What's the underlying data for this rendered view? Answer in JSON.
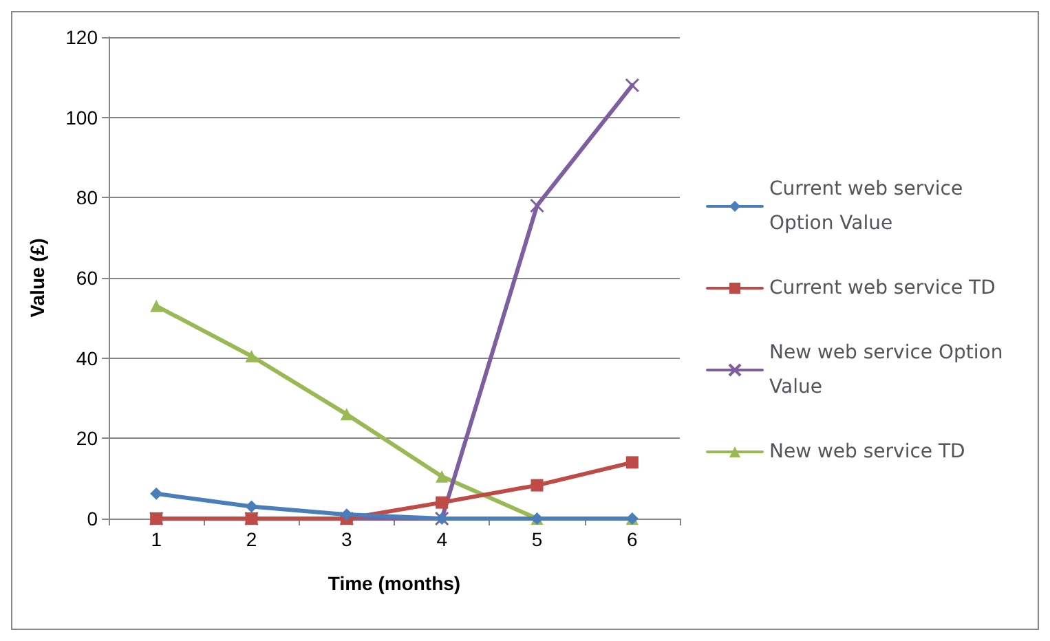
{
  "chart_data": {
    "type": "line",
    "xlabel": "Time (months)",
    "ylabel": "Value (£)",
    "categories": [
      "1",
      "2",
      "3",
      "4",
      "5",
      "6"
    ],
    "ylim": [
      0,
      120
    ],
    "yticks": [
      0,
      20,
      40,
      60,
      80,
      100,
      120
    ],
    "grid": "y",
    "legend": "right",
    "line_style": "solid",
    "series": [
      {
        "name": "Current web service Option Value",
        "color": "#4a7ebb",
        "marker": "diamond",
        "values": [
          6.2,
          3,
          1,
          0,
          0,
          0
        ]
      },
      {
        "name": "Current web service TD",
        "color": "#be4b48",
        "marker": "square",
        "values": [
          0,
          0,
          0,
          4,
          8.3,
          14
        ]
      },
      {
        "name": "New web service Option Value",
        "color": "#7d5fa0",
        "marker": "cross",
        "values": [
          0,
          0,
          0,
          0,
          78,
          108
        ]
      },
      {
        "name": "New web service TD",
        "color": "#98b954",
        "marker": "triangle",
        "values": [
          53,
          40.5,
          26,
          10.5,
          0,
          0
        ]
      }
    ]
  }
}
